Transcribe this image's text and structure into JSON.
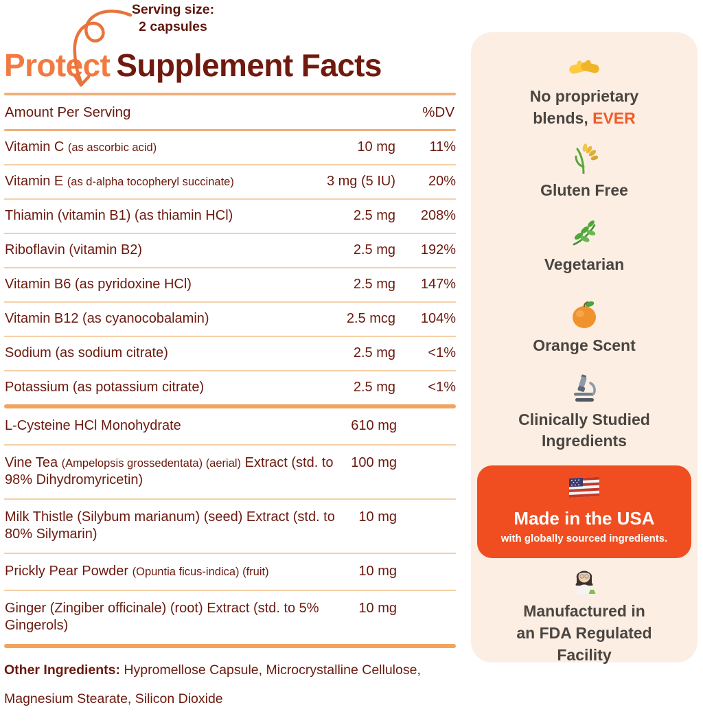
{
  "serving": {
    "line1": "Serving size:",
    "line2": "2 capsules"
  },
  "title": {
    "brand": "Protect",
    "rest": "Supplement Facts"
  },
  "table": {
    "header": {
      "left": "Amount Per Serving",
      "right": "%DV"
    },
    "sections": [
      {
        "rows": [
          {
            "parts": [
              {
                "text": "Vitamin C ",
                "small": false
              },
              {
                "text": "(as ascorbic acid)",
                "small": true
              }
            ],
            "amount": "10 mg",
            "dv": "11%"
          },
          {
            "parts": [
              {
                "text": "Vitamin E ",
                "small": false
              },
              {
                "text": "(as d-alpha tocopheryl succinate)",
                "small": true
              }
            ],
            "amount": "3 mg (5 IU)",
            "dv": "20%"
          },
          {
            "parts": [
              {
                "text": "Thiamin (vitamin B1) (as thiamin HCl)",
                "small": false
              }
            ],
            "amount": "2.5 mg",
            "dv": "208%"
          },
          {
            "parts": [
              {
                "text": "Riboflavin (vitamin B2)",
                "small": false
              }
            ],
            "amount": "2.5 mg",
            "dv": "192%"
          },
          {
            "parts": [
              {
                "text": "Vitamin B6 (as pyridoxine HCl)",
                "small": false
              }
            ],
            "amount": "2.5 mg",
            "dv": "147%"
          },
          {
            "parts": [
              {
                "text": "Vitamin B12 (as cyanocobalamin)",
                "small": false
              }
            ],
            "amount": "2.5 mcg",
            "dv": "104%"
          },
          {
            "parts": [
              {
                "text": "Sodium (as sodium citrate)",
                "small": false
              }
            ],
            "amount": "2.5 mg",
            "dv": "<1%"
          },
          {
            "parts": [
              {
                "text": "Potassium (as potassium citrate)",
                "small": false
              }
            ],
            "amount": "2.5 mg",
            "dv": "<1%"
          }
        ]
      },
      {
        "rows": [
          {
            "parts": [
              {
                "text": "L-Cysteine HCl Monohydrate",
                "small": false
              }
            ],
            "amount": "610 mg",
            "dv": ""
          },
          {
            "parts": [
              {
                "text": "Vine Tea ",
                "small": false
              },
              {
                "text": "(Ampelopsis grossedentata) (aerial)",
                "small": true
              },
              {
                "text": " Extract (std. to 98% Dihydromyricetin)",
                "small": false
              }
            ],
            "amount": "100 mg",
            "dv": ""
          },
          {
            "parts": [
              {
                "text": "Milk Thistle (Silybum marianum) (seed) Extract (std. to 80% Silymarin)",
                "small": false
              }
            ],
            "amount": "10 mg",
            "dv": ""
          },
          {
            "parts": [
              {
                "text": "Prickly Pear Powder ",
                "small": false
              },
              {
                "text": "(Opuntia ficus-indica) (fruit)",
                "small": true
              }
            ],
            "amount": "10 mg",
            "dv": ""
          },
          {
            "parts": [
              {
                "text": "Ginger (Zingiber officinale) (root) Extract (std. to 5% Gingerols)",
                "small": false
              }
            ],
            "amount": "10 mg",
            "dv": ""
          }
        ]
      }
    ]
  },
  "other_ingredients": {
    "label": "Other Ingredients:",
    "text": " Hypromellose Capsule, Microcrystalline Cellulose, Magnesium Stearate, Silicon Dioxide"
  },
  "panel": {
    "badges": [
      {
        "icon": "handshake-icon",
        "label": "No proprietary blends,",
        "accent": "EVER"
      },
      {
        "icon": "sheaf-of-rice-icon",
        "label": "Gluten Free"
      },
      {
        "icon": "herb-icon",
        "label": "Vegetarian"
      },
      {
        "icon": "tangerine-icon",
        "label": "Orange Scent"
      },
      {
        "icon": "microscope-icon",
        "label": "Clinically Studied Ingredients"
      },
      {
        "icon": "woman-scientist-icon",
        "label": "Manufactured in an FDA Regulated Facility"
      }
    ],
    "usa_card": {
      "icon": "us-flag-icon",
      "title": "Made in the USA",
      "subtitle": "with globally sourced ingredients."
    }
  },
  "colors": {
    "brand_orange": "#F2793F",
    "title_maroon": "#701A0F",
    "table_maroon": "#6B190E",
    "accent_orange": "#F05B28",
    "usa_card_orange": "#F04E21",
    "panel_background": "#FCEEE3",
    "panel_text": "#4A4541",
    "divider_medium": "#F0AF79",
    "divider_thick": "#F2A45F",
    "divider_thin": "#F5CFA8"
  }
}
